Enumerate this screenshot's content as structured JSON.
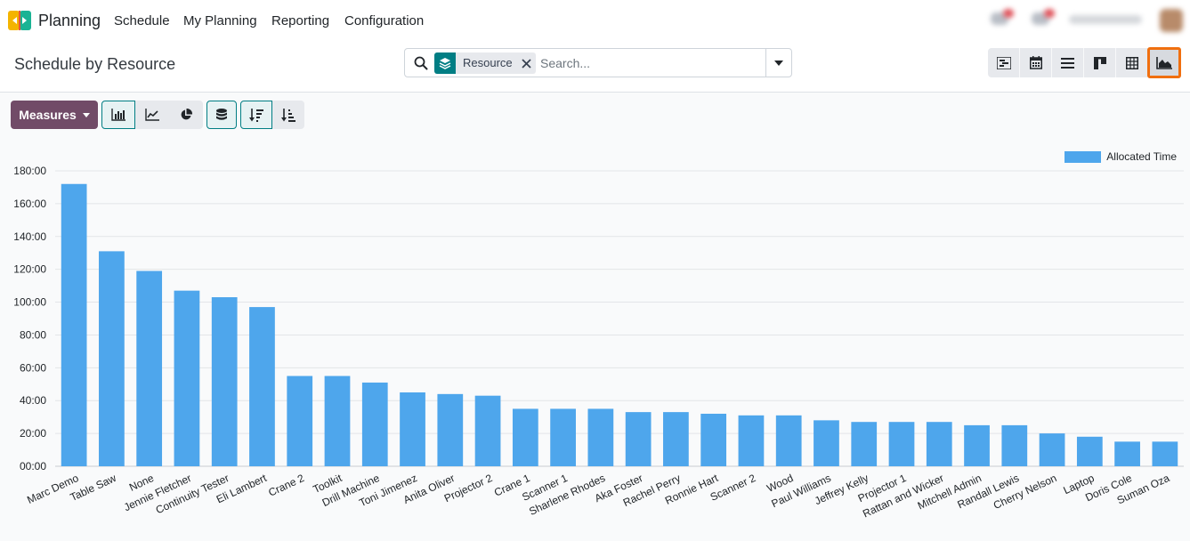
{
  "app": {
    "name": "Planning"
  },
  "nav": {
    "menus": [
      "Schedule",
      "My Planning",
      "Reporting",
      "Configuration"
    ]
  },
  "page": {
    "title": "Schedule by Resource"
  },
  "search": {
    "facet_label": "Resource",
    "placeholder": "Search...",
    "value": ""
  },
  "views": [
    "gantt-view",
    "calendar-view",
    "list-view",
    "kanban-view",
    "pivot-view",
    "graph-view"
  ],
  "active_view": "graph-view",
  "toolbar": {
    "measures_label": "Measures"
  },
  "colors": {
    "brand": "#714b67",
    "accent": "#017e84",
    "bar": "#4ea6ec",
    "highlight": "#f06f0f"
  },
  "chart_data": {
    "type": "bar",
    "legend_position": "top-right",
    "grid": true,
    "series": [
      {
        "name": "Allocated Time",
        "values": [
          172,
          131,
          119,
          107,
          103,
          97,
          55,
          55,
          51,
          45,
          44,
          43,
          35,
          35,
          35,
          33,
          33,
          32,
          31,
          31,
          28,
          27,
          27,
          27,
          25,
          25,
          20,
          18,
          15,
          15
        ]
      }
    ],
    "categories": [
      "Marc Demo",
      "Table Saw",
      "None",
      "Jennie Fletcher",
      "Continuity Tester",
      "Eli Lambert",
      "Crane 2",
      "Toolkit",
      "Drill Machine",
      "Toni Jimenez",
      "Anita Oliver",
      "Projector 2",
      "Crane 1",
      "Scanner 1",
      "Sharlene Rhodes",
      "Aka Foster",
      "Rachel Perry",
      "Ronnie Hart",
      "Scanner 2",
      "Wood",
      "Paul Williams",
      "Jeffrey Kelly",
      "Projector 1",
      "Rattan and Wicker",
      "Mitchell Admin",
      "Randall Lewis",
      "Cherry Nelson",
      "Laptop",
      "Doris Cole",
      "Suman Oza"
    ],
    "y_ticks": [
      "00:00",
      "20:00",
      "40:00",
      "60:00",
      "80:00",
      "100:00",
      "120:00",
      "140:00",
      "160:00",
      "180:00"
    ],
    "ylim": [
      0,
      180
    ]
  }
}
